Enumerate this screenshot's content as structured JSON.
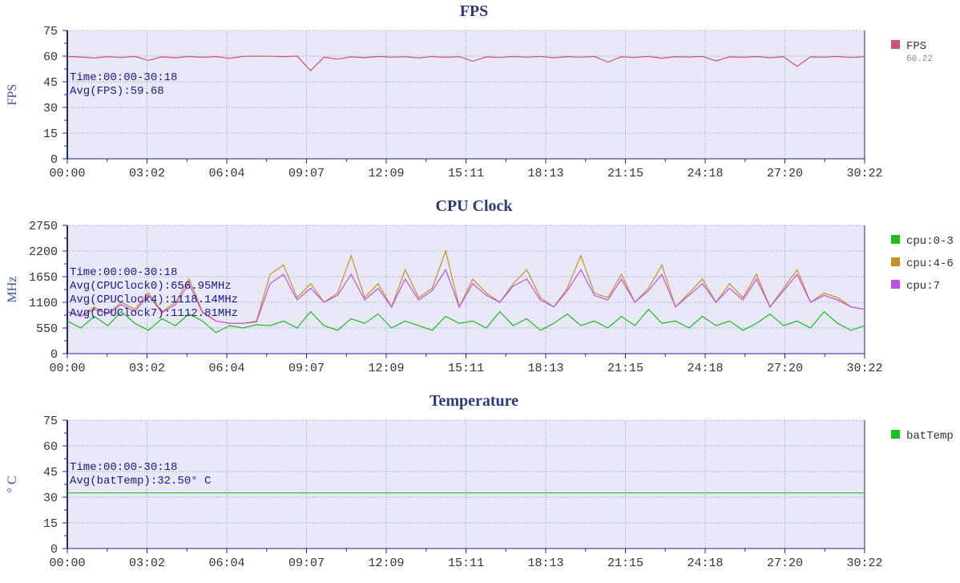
{
  "chart_data": [
    {
      "type": "line",
      "title": "FPS",
      "ylabel": "FPS",
      "ylim": [
        0,
        75
      ],
      "yticks": [
        "0",
        "15",
        "30",
        "45",
        "60",
        "75"
      ],
      "xticks": [
        "00:00",
        "03:02",
        "06:04",
        "09:07",
        "12:09",
        "15:11",
        "18:13",
        "21:15",
        "24:18",
        "27:20",
        "30:22"
      ],
      "annotations": [
        "Time:00:00-30:18",
        "Avg(FPS):59.68"
      ],
      "grid": true,
      "legend_position": "right",
      "series": [
        {
          "name": "FPS",
          "legend_value": "60.22",
          "color": "#d9506a",
          "values": [
            59.8,
            59.5,
            58.9,
            59.7,
            59.2,
            59.8,
            57.5,
            59.6,
            59.0,
            59.8,
            59.3,
            59.7,
            58.7,
            59.8,
            60.0,
            59.9,
            59.7,
            60.0,
            51.5,
            59.4,
            58.2,
            59.6,
            59.1,
            59.8,
            59.4,
            59.7,
            58.9,
            59.8,
            59.3,
            59.7,
            57.0,
            59.6,
            59.2,
            59.8,
            59.4,
            59.8,
            59.0,
            59.7,
            59.4,
            59.8,
            56.5,
            59.6,
            59.2,
            59.8,
            58.8,
            59.7,
            59.5,
            59.8,
            57.2,
            59.6,
            59.3,
            59.8,
            59.0,
            59.7,
            54.0,
            59.6,
            59.4,
            59.8,
            59.2,
            59.7
          ]
        }
      ]
    },
    {
      "type": "line",
      "title": "CPU Clock",
      "ylabel": "MHz",
      "ylim": [
        0,
        2750
      ],
      "yticks": [
        "0",
        "550",
        "1100",
        "1650",
        "2200",
        "2750"
      ],
      "xticks": [
        "00:00",
        "03:02",
        "06:04",
        "09:07",
        "12:09",
        "15:11",
        "18:13",
        "21:15",
        "24:18",
        "27:20",
        "30:22"
      ],
      "annotations": [
        "Time:00:00-30:18",
        "Avg(CPUClock0):656.95MHz",
        "Avg(CPUClock4):1118.14MHz",
        "Avg(CPUClock7):1112.81MHz"
      ],
      "grid": true,
      "legend_position": "right",
      "series": [
        {
          "name": "cpu:0-3",
          "color": "#18c018",
          "values": [
            700,
            550,
            800,
            600,
            900,
            650,
            500,
            750,
            600,
            850,
            700,
            450,
            600,
            550,
            620,
            600,
            700,
            550,
            900,
            600,
            500,
            750,
            650,
            850,
            550,
            700,
            600,
            500,
            800,
            650,
            700,
            550,
            900,
            600,
            750,
            500,
            650,
            850,
            600,
            700,
            550,
            800,
            600,
            950,
            650,
            700,
            550,
            800,
            600,
            700,
            500,
            650,
            850,
            600,
            700,
            550,
            900,
            650,
            500,
            600
          ]
        },
        {
          "name": "cpu:4-6",
          "color": "#c8901e",
          "values": [
            900,
            800,
            1000,
            850,
            1100,
            950,
            1300,
            900,
            1100,
            1600,
            900,
            700,
            650,
            650,
            700,
            1700,
            1900,
            1200,
            1500,
            1100,
            1300,
            2100,
            1200,
            1500,
            1000,
            1800,
            1200,
            1400,
            2200,
            1000,
            1600,
            1300,
            1100,
            1500,
            1800,
            1200,
            1000,
            1400,
            2100,
            1300,
            1200,
            1700,
            1100,
            1400,
            1900,
            1000,
            1300,
            1600,
            1100,
            1500,
            1200,
            1700,
            1000,
            1400,
            1800,
            1100,
            1300,
            1200,
            1000,
            950
          ]
        },
        {
          "name": "cpu:7",
          "color": "#c050e8",
          "values": [
            900,
            800,
            950,
            850,
            1050,
            900,
            1250,
            880,
            1050,
            1500,
            880,
            700,
            650,
            650,
            680,
            1500,
            1700,
            1150,
            1400,
            1100,
            1250,
            1700,
            1150,
            1400,
            1000,
            1600,
            1150,
            1350,
            1800,
            1000,
            1500,
            1250,
            1100,
            1450,
            1600,
            1150,
            1000,
            1350,
            1800,
            1250,
            1150,
            1600,
            1100,
            1350,
            1700,
            1000,
            1250,
            1500,
            1100,
            1400,
            1150,
            1600,
            1000,
            1350,
            1700,
            1100,
            1250,
            1150,
            1000,
            950
          ]
        }
      ]
    },
    {
      "type": "line",
      "title": "Temperature",
      "ylabel": "° C",
      "ylim": [
        0,
        75
      ],
      "yticks": [
        "0",
        "15",
        "30",
        "45",
        "60",
        "75"
      ],
      "xticks": [
        "00:00",
        "03:02",
        "06:04",
        "09:07",
        "12:09",
        "15:11",
        "18:13",
        "21:15",
        "24:18",
        "27:20",
        "30:22"
      ],
      "annotations": [
        "Time:00:00-30:18",
        "Avg(batTemp):32.50° C"
      ],
      "grid": true,
      "legend_position": "right",
      "series": [
        {
          "name": "batTemp",
          "color": "#18c018",
          "values": [
            32.5,
            32.5
          ]
        }
      ]
    }
  ]
}
